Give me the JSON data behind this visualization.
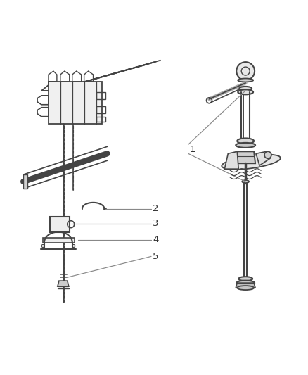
{
  "bg_color": "#ffffff",
  "line_color": "#444444",
  "callout_color": "#888888",
  "label_color": "#333333",
  "fig_width": 4.38,
  "fig_height": 5.33,
  "dpi": 100
}
